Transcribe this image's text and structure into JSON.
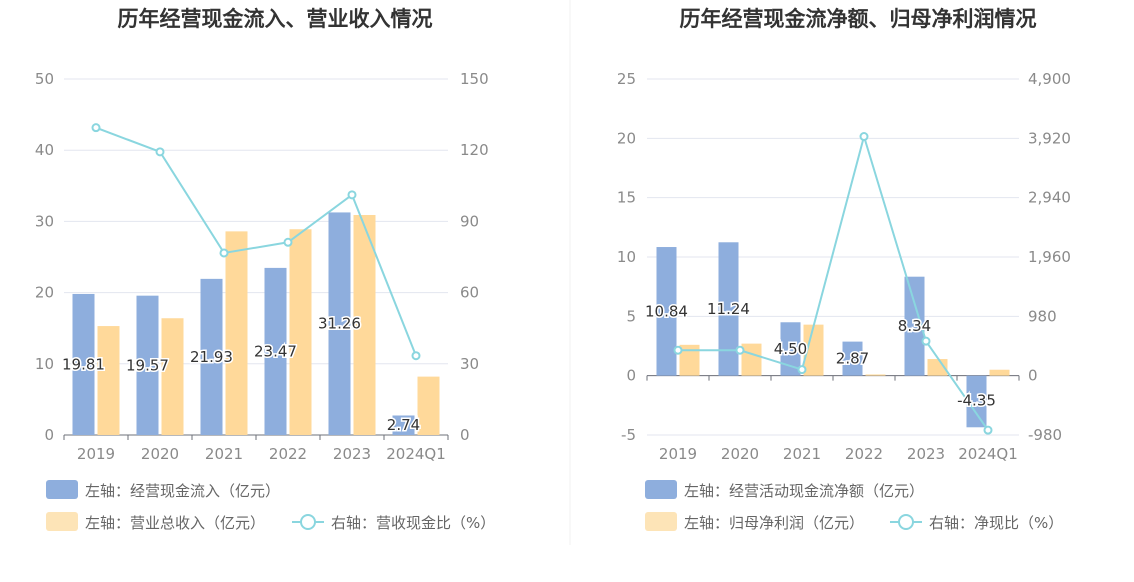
{
  "charts": [
    {
      "title": "历年经营现金流入、营业收入情况",
      "legend": [
        {
          "label": "左轴：经营现金流入（亿元）",
          "kind": "bar",
          "color": "#8eaedd"
        },
        {
          "label": "左轴：营业总收入（亿元）",
          "kind": "bar",
          "color": "#fde4b7"
        },
        {
          "label": "右轴：营收现金比（%）",
          "kind": "line",
          "color": "#8ad6df"
        }
      ]
    },
    {
      "title": "历年经营现金流净额、归母净利润情况",
      "legend": [
        {
          "label": "左轴：经营活动现金流净额（亿元）",
          "kind": "bar",
          "color": "#8eaedd"
        },
        {
          "label": "左轴：归母净利润（亿元）",
          "kind": "bar",
          "color": "#fde4b7"
        },
        {
          "label": "右轴：净现比（%）",
          "kind": "line",
          "color": "#8ad6df"
        }
      ]
    }
  ],
  "chart_data": [
    {
      "type": "bar",
      "title": "历年经营现金流入、营业收入情况",
      "categories": [
        "2019",
        "2020",
        "2021",
        "2022",
        "2023",
        "2024Q1"
      ],
      "left_axis": {
        "ticks": [
          "0",
          "10",
          "20",
          "30",
          "40",
          "50"
        ],
        "range": [
          0,
          50
        ]
      },
      "right_axis": {
        "ticks": [
          "0",
          "30",
          "60",
          "90",
          "120",
          "150"
        ],
        "range": [
          0,
          150
        ]
      },
      "series": [
        {
          "name": "经营现金流入（亿元）",
          "axis": "left",
          "type": "bar",
          "color": "#8eaedd",
          "values": [
            19.81,
            19.57,
            21.93,
            23.47,
            31.26,
            2.74
          ],
          "labels": [
            "19.81",
            "19.57",
            "21.93",
            "23.47",
            "31.26",
            "2.74"
          ]
        },
        {
          "name": "营业总收入（亿元）",
          "axis": "left",
          "type": "bar",
          "color": "#ffd99a",
          "values": [
            15.3,
            16.4,
            28.6,
            28.9,
            30.9,
            8.2
          ]
        },
        {
          "name": "营收现金比（%）",
          "axis": "right",
          "type": "line",
          "color": "#8ad6df",
          "values": [
            129.5,
            119.3,
            76.7,
            81.2,
            101.2,
            33.4
          ]
        }
      ],
      "grid": true,
      "legend_position": "bottom"
    },
    {
      "type": "bar",
      "title": "历年经营现金流净额、归母净利润情况",
      "categories": [
        "2019",
        "2020",
        "2021",
        "2022",
        "2023",
        "2024Q1"
      ],
      "left_axis": {
        "ticks": [
          "-5",
          "0",
          "5",
          "10",
          "15",
          "20",
          "25"
        ],
        "range": [
          -5,
          25
        ]
      },
      "right_axis": {
        "ticks": [
          "-980",
          "0",
          "980",
          "1,960",
          "2,940",
          "3,920",
          "4,900"
        ],
        "range": [
          -980,
          4900
        ]
      },
      "series": [
        {
          "name": "经营活动现金流净额（亿元）",
          "axis": "left",
          "type": "bar",
          "color": "#8eaedd",
          "values": [
            10.84,
            11.24,
            4.5,
            2.87,
            8.34,
            -4.35
          ],
          "labels": [
            "10.84",
            "11.24",
            "4.50",
            "2.87",
            "8.34",
            "-4.35"
          ]
        },
        {
          "name": "归母净利润（亿元）",
          "axis": "left",
          "type": "bar",
          "color": "#ffd99a",
          "values": [
            2.6,
            2.7,
            4.3,
            0.1,
            1.4,
            0.5
          ]
        },
        {
          "name": "净现比（%）",
          "axis": "right",
          "type": "line",
          "color": "#8ad6df",
          "values": [
            420,
            420,
            100,
            3950,
            570,
            -900
          ]
        }
      ],
      "grid": true,
      "legend_position": "bottom"
    }
  ]
}
